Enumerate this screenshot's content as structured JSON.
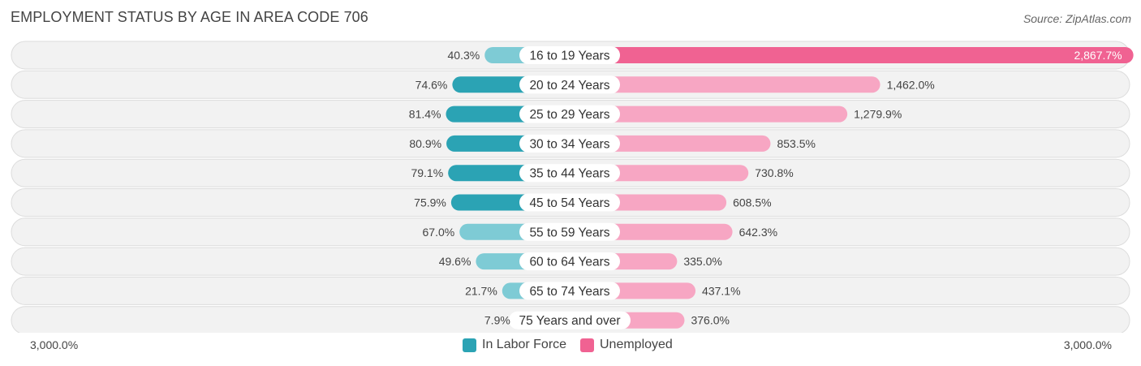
{
  "title": "EMPLOYMENT STATUS BY AGE IN AREA CODE 706",
  "source": "Source: ZipAtlas.com",
  "colors": {
    "labor_strong": "#2ba3b4",
    "labor_light": "#7ecbd5",
    "unemp_strong": "#f06292",
    "unemp_light": "#f7a6c3",
    "row_bg": "#f2f2f2",
    "row_border": "#dcdcdc"
  },
  "chart_data": {
    "type": "bar",
    "title": "EMPLOYMENT STATUS BY AGE IN AREA CODE 706",
    "categories": [
      "16 to 19 Years",
      "20 to 24 Years",
      "25 to 29 Years",
      "30 to 34 Years",
      "35 to 44 Years",
      "45 to 54 Years",
      "55 to 59 Years",
      "60 to 64 Years",
      "65 to 74 Years",
      "75 Years and over"
    ],
    "series": [
      {
        "name": "In Labor Force",
        "values": [
          40.3,
          74.6,
          81.4,
          80.9,
          79.1,
          75.9,
          67.0,
          49.6,
          21.7,
          7.9
        ],
        "labels": [
          "40.3%",
          "74.6%",
          "81.4%",
          "80.9%",
          "79.1%",
          "75.9%",
          "67.0%",
          "49.6%",
          "21.7%",
          "7.9%"
        ]
      },
      {
        "name": "Unemployed",
        "values": [
          2867.7,
          1462.0,
          1279.9,
          853.5,
          730.8,
          608.5,
          642.3,
          335.0,
          437.1,
          376.0
        ],
        "labels": [
          "2,867.7%",
          "1,462.0%",
          "1,279.9%",
          "853.5%",
          "730.8%",
          "608.5%",
          "642.3%",
          "335.0%",
          "437.1%",
          "376.0%"
        ]
      }
    ],
    "axis_min_label": "3,000.0%",
    "axis_max_label": "3,000.0%",
    "xlim": [
      -3000,
      3000
    ],
    "legend": [
      "In Labor Force",
      "Unemployed"
    ],
    "legend_position": "bottom-center"
  }
}
